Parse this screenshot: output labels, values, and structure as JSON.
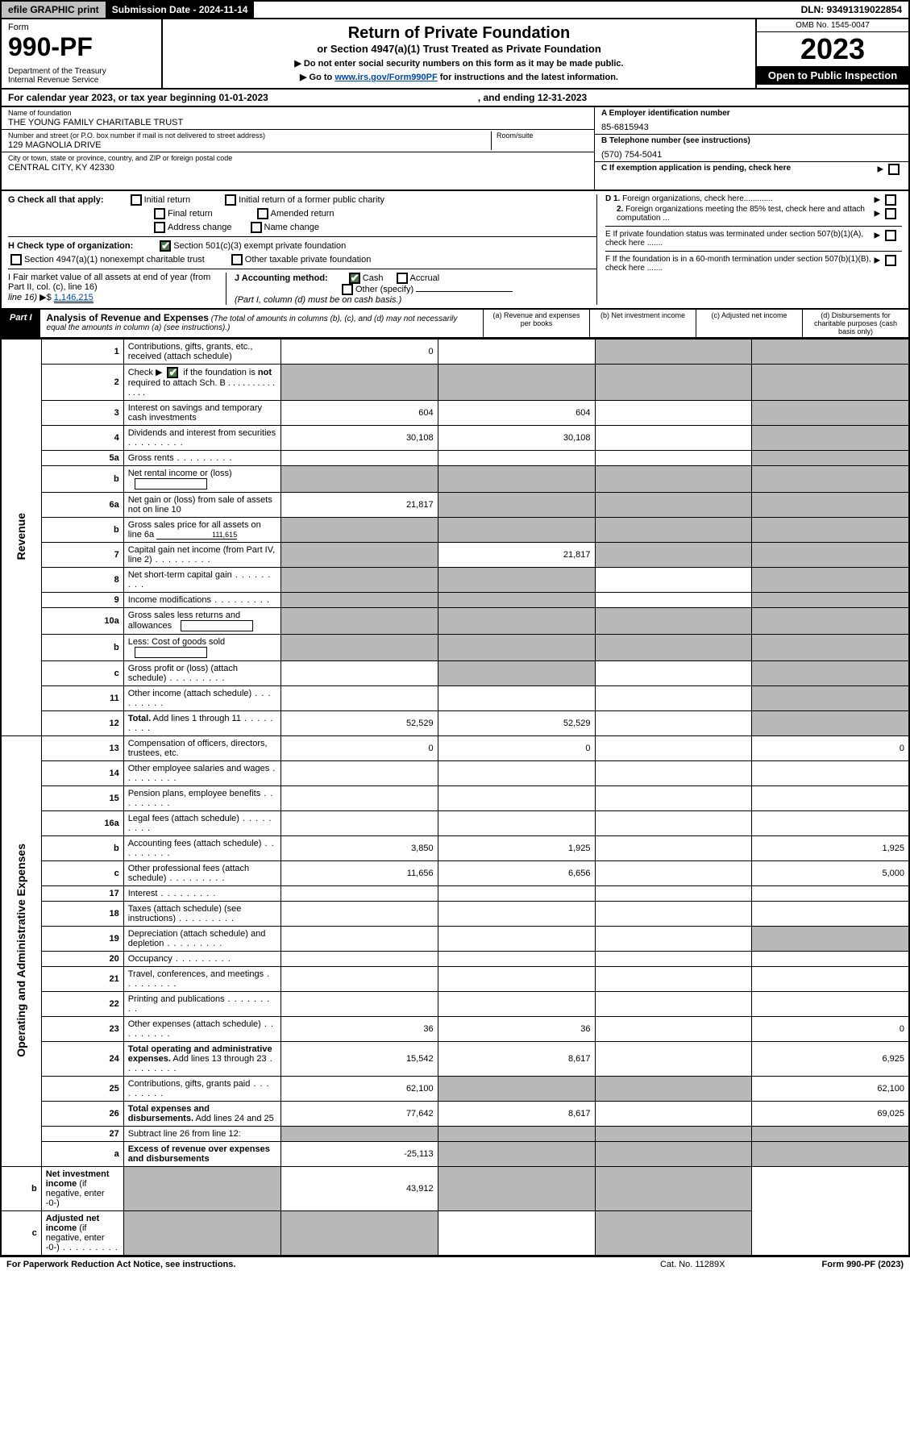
{
  "top": {
    "efile": "efile GRAPHIC print",
    "subdate_label": "Submission Date - 2024-11-14",
    "dln": "DLN: 93491319022854"
  },
  "header": {
    "form_label": "Form",
    "form_number": "990-PF",
    "dept": "Department of the Treasury\nInternal Revenue Service",
    "title": "Return of Private Foundation",
    "subtitle": "or Section 4947(a)(1) Trust Treated as Private Foundation",
    "instr1": "▶ Do not enter social security numbers on this form as it may be made public.",
    "instr2_pre": "▶ Go to ",
    "instr2_link": "www.irs.gov/Form990PF",
    "instr2_post": " for instructions and the latest information.",
    "omb": "OMB No. 1545-0047",
    "year": "2023",
    "open": "Open to Public Inspection"
  },
  "calendar": {
    "text": "For calendar year 2023, or tax year beginning 01-01-2023",
    "ending": ", and ending 12-31-2023"
  },
  "info": {
    "name_label": "Name of foundation",
    "name": "THE YOUNG FAMILY CHARITABLE TRUST",
    "addr_label": "Number and street (or P.O. box number if mail is not delivered to street address)",
    "room_label": "Room/suite",
    "addr": "129 MAGNOLIA DRIVE",
    "city_label": "City or town, state or province, country, and ZIP or foreign postal code",
    "city": "CENTRAL CITY, KY  42330",
    "A_label": "A Employer identification number",
    "A_val": "85-6815943",
    "B_label": "B Telephone number (see instructions)",
    "B_val": "(570) 754-5041",
    "C_label": "C If exemption application is pending, check here",
    "D1": "D 1. Foreign organizations, check here.............",
    "D2": "2. Foreign organizations meeting the 85% test, check here and attach computation ...",
    "E": "E  If private foundation status was terminated under section 507(b)(1)(A), check here .......",
    "F": "F  If the foundation is in a 60-month termination under section 507(b)(1)(B), check here .......",
    "G_label": "G Check all that apply:",
    "G_opts": [
      "Initial return",
      "Initial return of a former public charity",
      "Final return",
      "Amended return",
      "Address change",
      "Name change"
    ],
    "H_label": "H Check type of organization:",
    "H_opts": [
      "Section 501(c)(3) exempt private foundation",
      "Section 4947(a)(1) nonexempt charitable trust",
      "Other taxable private foundation"
    ],
    "I_label": "I Fair market value of all assets at end of year (from Part II, col. (c), line 16)",
    "I_val": "1,146,215",
    "J_label": "J Accounting method:",
    "J_opts": [
      "Cash",
      "Accrual",
      "Other (specify)"
    ],
    "J_note": "(Part I, column (d) must be on cash basis.)"
  },
  "part1": {
    "badge": "Part I",
    "title": "Analysis of Revenue and Expenses",
    "note": " (The total of amounts in columns (b), (c), and (d) may not necessarily equal the amounts in column (a) (see instructions).)",
    "cols": [
      "(a)   Revenue and expenses per books",
      "(b)   Net investment income",
      "(c)   Adjusted net income",
      "(d)   Disbursements for charitable purposes (cash basis only)"
    ]
  },
  "sides": {
    "rev": "Revenue",
    "exp": "Operating and Administrative Expenses"
  },
  "rows": [
    {
      "n": "1",
      "d": "Contributions, gifts, grants, etc., received (attach schedule)",
      "a": "0",
      "b": "",
      "c": "sh",
      "dd": "sh"
    },
    {
      "n": "2",
      "d": "Check ▶ [x] if the foundation is <b>not</b> required to attach Sch. B",
      "dots": 1,
      "a": "sh",
      "b": "sh",
      "c": "sh",
      "dd": "sh"
    },
    {
      "n": "3",
      "d": "Interest on savings and temporary cash investments",
      "a": "604",
      "b": "604",
      "c": "",
      "dd": "sh"
    },
    {
      "n": "4",
      "d": "Dividends and interest from securities",
      "dots": 1,
      "a": "30,108",
      "b": "30,108",
      "c": "",
      "dd": "sh"
    },
    {
      "n": "5a",
      "d": "Gross rents",
      "dots": 1,
      "a": "",
      "b": "",
      "c": "",
      "dd": "sh"
    },
    {
      "n": "b",
      "d": "Net rental income or (loss)",
      "uf": 1,
      "a": "sh",
      "b": "sh",
      "c": "sh",
      "dd": "sh"
    },
    {
      "n": "6a",
      "d": "Net gain or (loss) from sale of assets not on line 10",
      "a": "21,817",
      "b": "sh",
      "c": "sh",
      "dd": "sh"
    },
    {
      "n": "b",
      "d": "Gross sales price for all assets on line 6a",
      "uf": "111,615",
      "a": "sh",
      "b": "sh",
      "c": "sh",
      "dd": "sh"
    },
    {
      "n": "7",
      "d": "Capital gain net income (from Part IV, line 2)",
      "dots": 1,
      "a": "sh",
      "b": "21,817",
      "c": "sh",
      "dd": "sh"
    },
    {
      "n": "8",
      "d": "Net short-term capital gain",
      "dots": 1,
      "a": "sh",
      "b": "sh",
      "c": "",
      "dd": "sh"
    },
    {
      "n": "9",
      "d": "Income modifications",
      "dots": 1,
      "a": "sh",
      "b": "sh",
      "c": "",
      "dd": "sh"
    },
    {
      "n": "10a",
      "d": "Gross sales less returns and allowances",
      "uf": 1,
      "a": "sh",
      "b": "sh",
      "c": "sh",
      "dd": "sh"
    },
    {
      "n": "b",
      "d": "Less: Cost of goods sold",
      "dots": 1,
      "uf": 1,
      "a": "sh",
      "b": "sh",
      "c": "sh",
      "dd": "sh"
    },
    {
      "n": "c",
      "d": "Gross profit or (loss) (attach schedule)",
      "dots": 1,
      "a": "",
      "b": "sh",
      "c": "",
      "dd": "sh"
    },
    {
      "n": "11",
      "d": "Other income (attach schedule)",
      "dots": 1,
      "a": "",
      "b": "",
      "c": "",
      "dd": "sh"
    },
    {
      "n": "12",
      "d": "<b>Total.</b> Add lines 1 through 11",
      "dots": 1,
      "a": "52,529",
      "b": "52,529",
      "c": "",
      "dd": "sh"
    },
    {
      "n": "13",
      "d": "Compensation of officers, directors, trustees, etc.",
      "a": "0",
      "b": "0",
      "c": "",
      "dd": "0"
    },
    {
      "n": "14",
      "d": "Other employee salaries and wages",
      "dots": 1,
      "a": "",
      "b": "",
      "c": "",
      "dd": ""
    },
    {
      "n": "15",
      "d": "Pension plans, employee benefits",
      "dots": 1,
      "a": "",
      "b": "",
      "c": "",
      "dd": ""
    },
    {
      "n": "16a",
      "d": "Legal fees (attach schedule)",
      "dots": 1,
      "a": "",
      "b": "",
      "c": "",
      "dd": ""
    },
    {
      "n": "b",
      "d": "Accounting fees (attach schedule)",
      "dots": 1,
      "a": "3,850",
      "b": "1,925",
      "c": "",
      "dd": "1,925"
    },
    {
      "n": "c",
      "d": "Other professional fees (attach schedule)",
      "dots": 1,
      "a": "11,656",
      "b": "6,656",
      "c": "",
      "dd": "5,000"
    },
    {
      "n": "17",
      "d": "Interest",
      "dots": 1,
      "a": "",
      "b": "",
      "c": "",
      "dd": ""
    },
    {
      "n": "18",
      "d": "Taxes (attach schedule) (see instructions)",
      "dots": 1,
      "a": "",
      "b": "",
      "c": "",
      "dd": ""
    },
    {
      "n": "19",
      "d": "Depreciation (attach schedule) and depletion",
      "dots": 1,
      "a": "",
      "b": "",
      "c": "",
      "dd": "sh"
    },
    {
      "n": "20",
      "d": "Occupancy",
      "dots": 1,
      "a": "",
      "b": "",
      "c": "",
      "dd": ""
    },
    {
      "n": "21",
      "d": "Travel, conferences, and meetings",
      "dots": 1,
      "a": "",
      "b": "",
      "c": "",
      "dd": ""
    },
    {
      "n": "22",
      "d": "Printing and publications",
      "dots": 1,
      "a": "",
      "b": "",
      "c": "",
      "dd": ""
    },
    {
      "n": "23",
      "d": "Other expenses (attach schedule)",
      "dots": 1,
      "a": "36",
      "b": "36",
      "c": "",
      "dd": "0"
    },
    {
      "n": "24",
      "d": "<b>Total operating and administrative expenses.</b> Add lines 13 through 23",
      "dots": 1,
      "a": "15,542",
      "b": "8,617",
      "c": "",
      "dd": "6,925"
    },
    {
      "n": "25",
      "d": "Contributions, gifts, grants paid",
      "dots": 1,
      "a": "62,100",
      "b": "sh",
      "c": "sh",
      "dd": "62,100"
    },
    {
      "n": "26",
      "d": "<b>Total expenses and disbursements.</b> Add lines 24 and 25",
      "a": "77,642",
      "b": "8,617",
      "c": "",
      "dd": "69,025"
    },
    {
      "n": "27",
      "d": "Subtract line 26 from line 12:",
      "a": "sh",
      "b": "sh",
      "c": "sh",
      "dd": "sh"
    },
    {
      "n": "a",
      "d": "<b>Excess of revenue over expenses and disbursements</b>",
      "a": "-25,113",
      "b": "sh",
      "c": "sh",
      "dd": "sh"
    },
    {
      "n": "b",
      "d": "<b>Net investment income</b> (if negative, enter -0-)",
      "a": "sh",
      "b": "43,912",
      "c": "sh",
      "dd": "sh"
    },
    {
      "n": "c",
      "d": "<b>Adjusted net income</b> (if negative, enter -0-)",
      "dots": 1,
      "a": "sh",
      "b": "sh",
      "c": "",
      "dd": "sh"
    }
  ],
  "footer": {
    "left": "For Paperwork Reduction Act Notice, see instructions.",
    "mid": "Cat. No. 11289X",
    "right": "Form 990-PF (2023)"
  },
  "colors": {
    "shade": "#b8b8b8",
    "link": "#0047ab",
    "check_green": "#4a7a4a"
  }
}
